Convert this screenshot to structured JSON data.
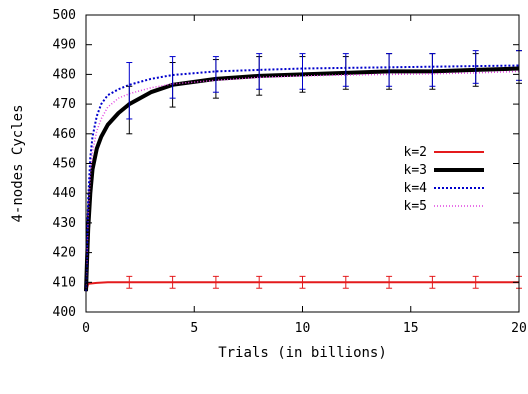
{
  "chart_data": {
    "type": "line",
    "xlabel": "Trials (in billions)",
    "ylabel": "4-nodes Cycles",
    "xlim": [
      0,
      20
    ],
    "ylim": [
      400,
      500
    ],
    "x_ticks": [
      0,
      5,
      10,
      15,
      20
    ],
    "y_ticks": [
      400,
      410,
      420,
      430,
      440,
      450,
      460,
      470,
      480,
      490,
      500
    ],
    "grid": false,
    "legend_position": "right",
    "series": [
      {
        "name": "k=2",
        "color": "#e41a1c",
        "style": "solid",
        "x": [
          0,
          0.1,
          0.5,
          1,
          2,
          4,
          6,
          8,
          10,
          12,
          14,
          16,
          18,
          20
        ],
        "values": [
          407,
          409.5,
          409.8,
          410,
          410,
          410,
          410,
          410,
          410,
          410,
          410,
          410,
          410,
          410
        ],
        "error_x": [
          2,
          4,
          6,
          8,
          10,
          12,
          14,
          16,
          18,
          20
        ],
        "error_lo": [
          408,
          408,
          408,
          408,
          408,
          408,
          408,
          408,
          408,
          408
        ],
        "error_hi": [
          412,
          412,
          412,
          412,
          412,
          412,
          412,
          412,
          412,
          412
        ]
      },
      {
        "name": "k=3",
        "color": "#000000",
        "style": "solid",
        "x": [
          0,
          0.05,
          0.1,
          0.2,
          0.3,
          0.5,
          0.7,
          1,
          1.5,
          2,
          3,
          4,
          6,
          8,
          10,
          12,
          14,
          16,
          18,
          20
        ],
        "values": [
          407,
          418,
          428,
          440,
          448,
          455,
          459,
          463,
          467,
          470,
          474,
          476.5,
          478.5,
          479.5,
          480,
          480.5,
          481,
          481,
          481.5,
          482
        ],
        "error_x": [
          2,
          4,
          6,
          8,
          10,
          12,
          14,
          16,
          18,
          20
        ],
        "error_lo": [
          460,
          469,
          472,
          473,
          474,
          475,
          475,
          475,
          476,
          477
        ],
        "error_hi": [
          476,
          484,
          485,
          486,
          486,
          486,
          487,
          487,
          487,
          488
        ]
      },
      {
        "name": "k=4",
        "color": "#0000cc",
        "style": "dotted",
        "x": [
          0,
          0.05,
          0.1,
          0.2,
          0.3,
          0.5,
          0.7,
          1,
          1.5,
          2,
          3,
          4,
          6,
          8,
          10,
          12,
          14,
          16,
          18,
          20
        ],
        "values": [
          407,
          425,
          438,
          452,
          459,
          466,
          470,
          473,
          475,
          476.5,
          478.5,
          479.8,
          481,
          481.5,
          482,
          482.2,
          482.4,
          482.6,
          482.8,
          483
        ],
        "error_x": [
          2,
          4,
          6,
          8,
          10,
          12,
          14,
          16,
          18,
          20
        ],
        "error_lo": [
          465,
          472,
          474,
          475,
          475,
          476,
          476,
          476,
          477,
          478
        ],
        "error_hi": [
          484,
          486,
          486,
          487,
          487,
          487,
          487,
          487,
          488,
          488
        ]
      },
      {
        "name": "k=5",
        "color": "#e040e0",
        "style": "dotted",
        "x": [
          0,
          0.05,
          0.1,
          0.2,
          0.3,
          0.5,
          0.7,
          1,
          1.5,
          2,
          3,
          4,
          6,
          8,
          10,
          12,
          14,
          16,
          18,
          20
        ],
        "values": [
          407,
          420,
          432,
          446,
          454,
          461,
          465,
          469,
          472,
          473.5,
          475.5,
          476.8,
          478,
          479,
          479.5,
          479.8,
          480,
          480.2,
          480.5,
          481
        ],
        "error_x": [],
        "error_lo": [],
        "error_hi": []
      }
    ]
  }
}
